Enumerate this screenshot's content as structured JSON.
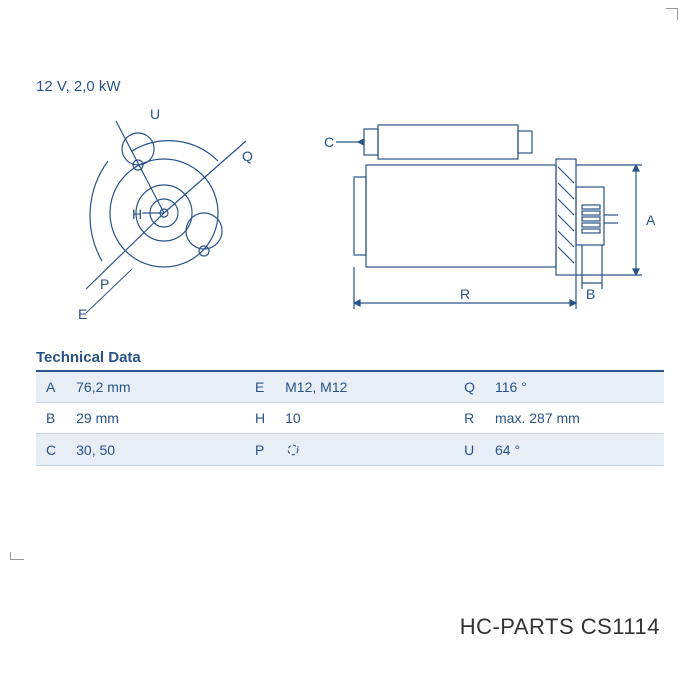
{
  "header": {
    "spec": "12 V, 2,0 kW"
  },
  "diagram": {
    "front_view": {
      "labels": {
        "U": "U",
        "Q": "Q",
        "H": "H",
        "P": "P",
        "E": "E"
      },
      "stroke": "#2a5388",
      "stroke_width": 1.2,
      "r_outer": 54,
      "r_inner": 28
    },
    "side_view": {
      "labels": {
        "C": "C",
        "A": "A",
        "B": "B",
        "R": "R"
      },
      "stroke": "#2a5388",
      "stroke_width": 1.2
    }
  },
  "table": {
    "title": "Technical Data",
    "rows": [
      {
        "k1": "A",
        "v1": "76,2 mm",
        "k2": "E",
        "v2": "M12, M12",
        "k3": "Q",
        "v3": "116 °"
      },
      {
        "k1": "B",
        "v1": "29 mm",
        "k2": "H",
        "v2": "10",
        "k3": "R",
        "v3": "max. 287 mm"
      },
      {
        "k1": "C",
        "v1": "30, 50",
        "k2": "P",
        "v2": "__ICON__",
        "k3": "U",
        "v3": "64 °"
      }
    ],
    "colors": {
      "header_border": "#2a5388",
      "row_odd": "#e8eef5",
      "row_even": "#ffffff",
      "text": "#2a5388"
    }
  },
  "brand": {
    "name": "HC-PARTS",
    "part": "CS1114"
  }
}
